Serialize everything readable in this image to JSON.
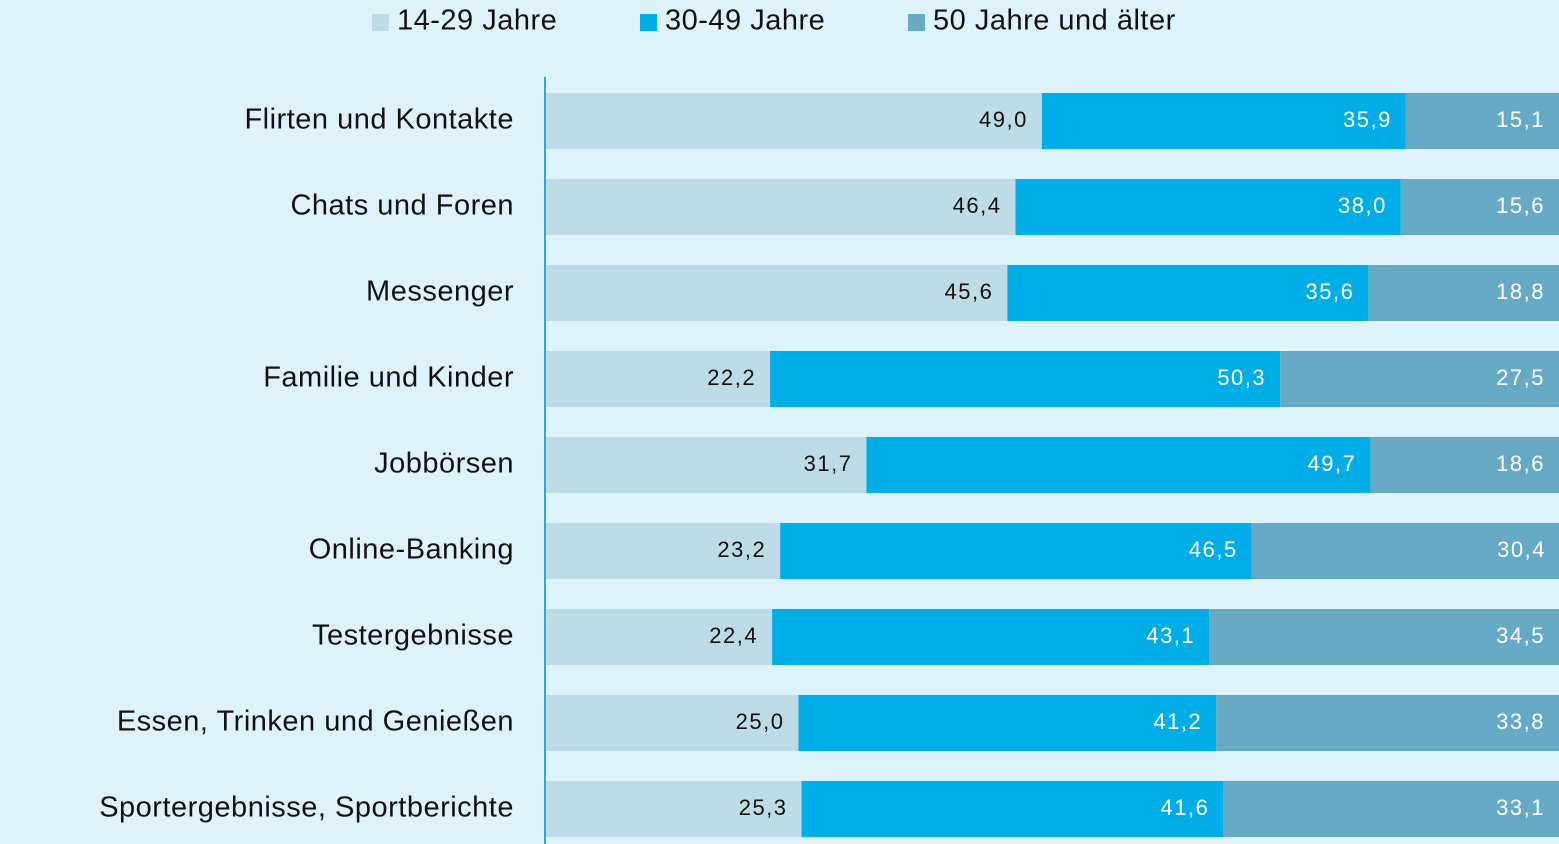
{
  "chart_data": {
    "type": "stacked_bar",
    "orientation": "horizontal",
    "categories": [
      "Flirten und Kontakte",
      "Chats und Foren",
      "Messenger",
      "Familie und Kinder",
      "Jobbörsen",
      "Online-Banking",
      "Testergebnisse",
      "Essen, Trinken und Genießen",
      "Sportergebnisse, Sportberichte"
    ],
    "series": [
      {
        "name": "14-29 Jahre",
        "color": "#bedce7",
        "values": [
          49.0,
          46.4,
          45.6,
          22.2,
          31.7,
          23.2,
          22.4,
          25.0,
          25.3
        ],
        "value_labels": [
          "49,0",
          "46,4",
          "45,6",
          "22,2",
          "31,7",
          "23,2",
          "22,4",
          "25,0",
          "25,3"
        ]
      },
      {
        "name": "30-49 Jahre",
        "color": "#00ade6",
        "values": [
          35.9,
          38.0,
          35.6,
          50.3,
          49.7,
          46.5,
          43.1,
          41.2,
          41.6
        ],
        "value_labels": [
          "35,9",
          "38,0",
          "35,6",
          "50,3",
          "49,7",
          "46,5",
          "43,1",
          "41,2",
          "41,6"
        ]
      },
      {
        "name": "50 Jahre und älter",
        "color": "#66aac5",
        "values": [
          15.1,
          15.6,
          18.8,
          27.5,
          18.6,
          30.4,
          34.5,
          33.8,
          33.1
        ],
        "value_labels": [
          "15,1",
          "15,6",
          "18,8",
          "27,5",
          "18,6",
          "30,4",
          "34,5",
          "33,8",
          "33,1"
        ]
      }
    ],
    "xlim": [
      0,
      100
    ],
    "legend": "top"
  }
}
